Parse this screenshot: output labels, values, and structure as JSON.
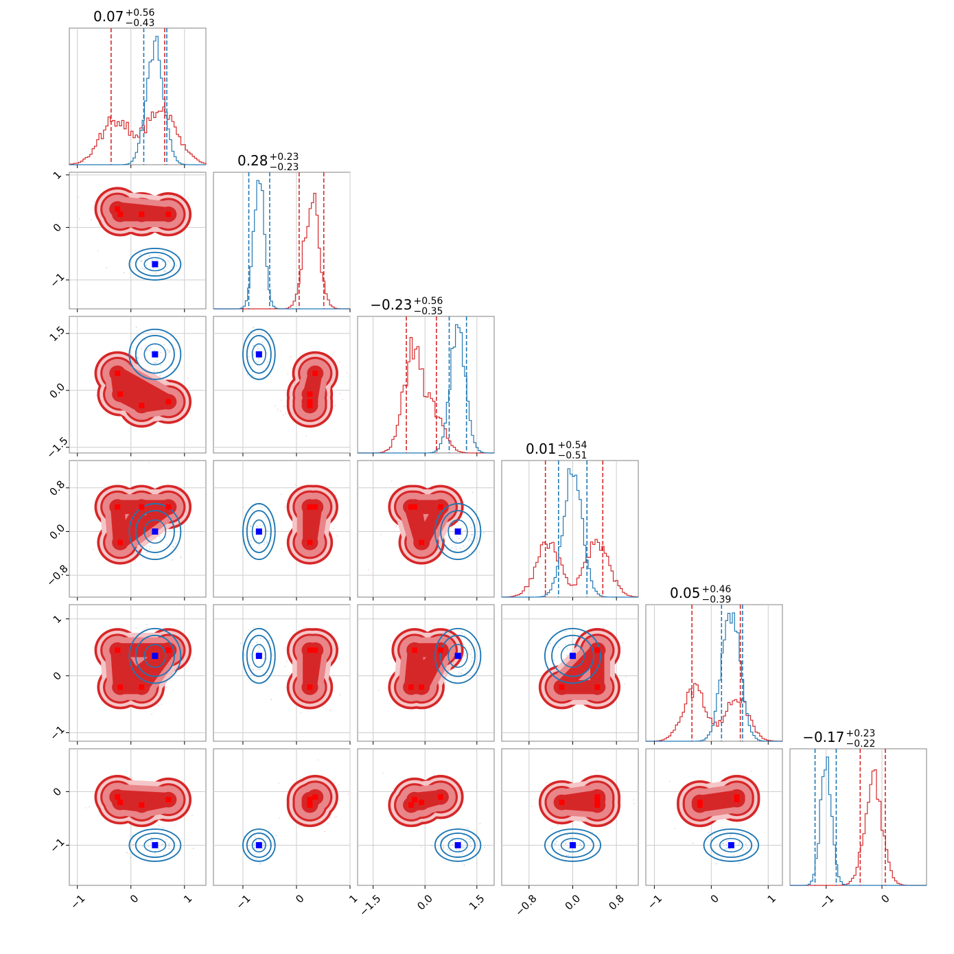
{
  "chart_data": {
    "type": "corner",
    "parameters": 6,
    "colors": {
      "red": "#d62728",
      "red_mid": "#e8868a",
      "red_light": "#f5c6c8",
      "blue": "#1f77b4",
      "marker_red": "#ff0000",
      "marker_blue": "#0000ff",
      "grid": "#cccccc",
      "axis": "#808080"
    },
    "grid": true,
    "x_ranges": [
      [
        -1.15,
        1.4
      ],
      [
        -1.55,
        1.0
      ],
      [
        -1.95,
        2.0
      ],
      [
        -1.3,
        1.2
      ],
      [
        -1.15,
        1.25
      ],
      [
        -1.65,
        0.8
      ]
    ],
    "y_ranges": [
      null,
      [
        -1.55,
        1.05
      ],
      [
        -1.65,
        1.95
      ],
      [
        -1.2,
        1.3
      ],
      [
        -1.15,
        1.25
      ],
      [
        -1.75,
        0.8
      ]
    ],
    "x_ticks": [
      {
        "values": [
          -1,
          0,
          1
        ],
        "labels": [
          "−1",
          "0",
          "1"
        ]
      },
      {
        "values": [
          -1,
          0,
          1
        ],
        "labels": [
          "−1",
          "0",
          "1"
        ]
      },
      {
        "values": [
          -1.5,
          0.0,
          1.5
        ],
        "labels": [
          "−1.5",
          "0.0",
          "1.5"
        ]
      },
      {
        "values": [
          -0.8,
          0.0,
          0.8
        ],
        "labels": [
          "−0.8",
          "0.0",
          "0.8"
        ]
      },
      {
        "values": [
          -1,
          0,
          1
        ],
        "labels": [
          "−1",
          "0",
          "1"
        ]
      },
      {
        "values": [
          -1,
          0
        ],
        "labels": [
          "−1",
          "0"
        ]
      }
    ],
    "y_ticks": [
      null,
      {
        "values": [
          -1,
          0,
          1
        ],
        "labels": [
          "−1",
          "0",
          "1"
        ]
      },
      {
        "values": [
          -1.5,
          0.0,
          1.5
        ],
        "labels": [
          "−1.5",
          "0.0",
          "1.5"
        ]
      },
      {
        "values": [
          -0.8,
          0.0,
          0.8
        ],
        "labels": [
          "−0.8",
          "0.0",
          "0.8"
        ]
      },
      {
        "values": [
          -1,
          0,
          1
        ],
        "labels": [
          "−1",
          "0",
          "1"
        ]
      },
      {
        "values": [
          -1,
          0
        ],
        "labels": [
          "−1",
          "0"
        ]
      }
    ],
    "titles": [
      {
        "median": "0.07",
        "plus": "+0.56",
        "minus": "−0.43"
      },
      {
        "median": "0.28",
        "plus": "+0.23",
        "minus": "−0.23"
      },
      {
        "median": "−0.23",
        "plus": "+0.56",
        "minus": "−0.35"
      },
      {
        "median": "0.01",
        "plus": "+0.54",
        "minus": "−0.51"
      },
      {
        "median": "0.05",
        "plus": "+0.46",
        "minus": "−0.39"
      },
      {
        "median": "−0.17",
        "plus": "+0.23",
        "minus": "−0.22"
      }
    ],
    "red_modes": [
      [
        -0.25,
        0.35,
        0.45,
        0.45,
        0.45,
        -0.1
      ],
      [
        -0.2,
        0.25,
        -0.1,
        -0.2,
        -0.2,
        -0.2
      ],
      [
        0.2,
        0.25,
        -0.4,
        0.45,
        -0.2,
        -0.25
      ],
      [
        0.7,
        0.25,
        -0.3,
        0.45,
        0.45,
        -0.15
      ],
      [
        -0.25,
        0.25,
        -1.1,
        -0.55,
        0.35,
        -0.15
      ],
      [
        0.45,
        0.25,
        0.5,
        -0.55,
        -0.25,
        -0.1
      ]
    ],
    "blue_point": [
      0.45,
      -0.7,
      0.95,
      0.0,
      0.35,
      -1.0
    ],
    "blue_sigma": [
      0.16,
      0.1,
      0.22,
      0.17,
      0.16,
      0.1
    ],
    "red_quantile_lines": [
      [
        -0.37,
        0.63
      ],
      [
        0.05,
        0.51
      ],
      [
        -0.54,
        0.33
      ],
      [
        -0.5,
        0.55
      ],
      [
        -0.34,
        0.51
      ],
      [
        -0.39,
        0.06
      ]
    ],
    "blue_quantile_lines": [
      [
        0.24,
        0.67
      ],
      [
        -0.89,
        -0.5
      ],
      [
        0.7,
        1.2
      ],
      [
        -0.26,
        0.26
      ],
      [
        0.18,
        0.55
      ],
      [
        -1.2,
        -0.82
      ]
    ]
  }
}
